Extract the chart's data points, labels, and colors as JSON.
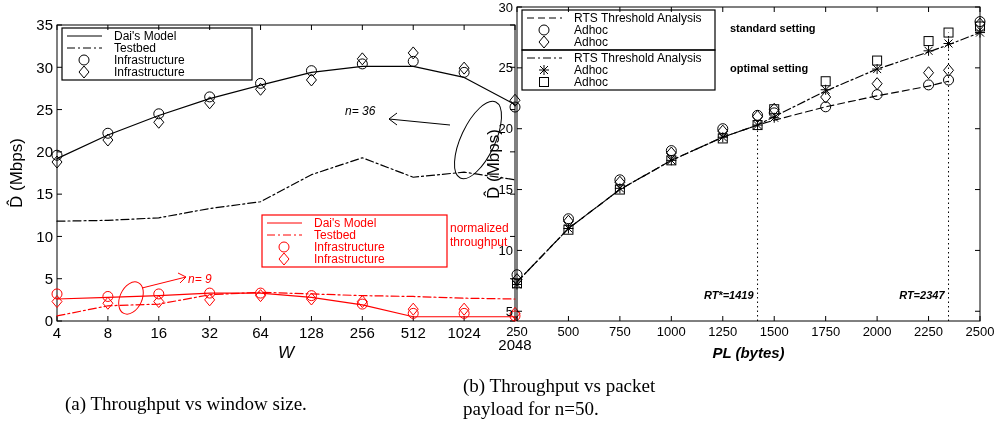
{
  "chart_data": [
    {
      "type": "line",
      "xlabel": "W",
      "ylabel": "D̂ (Mbps)",
      "categories": [
        "4",
        "8",
        "16",
        "32",
        "64",
        "128",
        "256",
        "512",
        "1024",
        "2048"
      ],
      "ylim": [
        0,
        35
      ],
      "yticks": [
        0,
        5,
        10,
        15,
        20,
        25,
        30,
        35
      ],
      "legend": "top left",
      "annotations": [
        "n= 36",
        "n= 9",
        "normalized throughput",
        "(a) Throughput vs window size."
      ],
      "series": [
        {
          "name": "Dai's Model",
          "line_style": "solid",
          "color": "#000000",
          "values": [
            19.2,
            22.0,
            24.3,
            26.3,
            27.9,
            29.4,
            30.1,
            30.1,
            28.8,
            25.6
          ]
        },
        {
          "name": "Testbed",
          "line_style": "dashdot",
          "color": "#000000",
          "values": [
            11.8,
            11.9,
            12.2,
            13.3,
            14.1,
            17.3,
            19.3,
            17.0,
            17.6,
            16.7
          ]
        },
        {
          "name": "Infrastructure",
          "type": "scatter",
          "marker": "circle",
          "color": "#000000",
          "values": [
            19.6,
            22.2,
            24.5,
            26.5,
            28.1,
            29.6,
            30.4,
            30.7,
            29.4,
            25.3
          ]
        },
        {
          "name": "Infrastructure",
          "type": "scatter",
          "marker": "diamond",
          "color": "#000000",
          "values": [
            18.8,
            21.4,
            23.5,
            25.8,
            27.4,
            28.5,
            31.0,
            31.7,
            29.9,
            26.1
          ]
        },
        {
          "name": "Dai's Model",
          "line_style": "solid",
          "color": "#ff0000",
          "values": [
            2.6,
            2.8,
            3.0,
            3.3,
            3.3,
            2.8,
            1.9,
            0.5,
            0.5,
            0.5
          ]
        },
        {
          "name": "Testbed",
          "line_style": "dashdot",
          "color": "#ff0000",
          "values": [
            0.6,
            1.8,
            2.0,
            3.1,
            3.4,
            3.2,
            3.0,
            2.9,
            2.7,
            2.6
          ]
        },
        {
          "name": "Infrastructure",
          "type": "scatter",
          "marker": "circle",
          "color": "#ff0000",
          "values": [
            3.2,
            2.9,
            3.2,
            3.3,
            3.3,
            3.0,
            2.0,
            0.9,
            0.9,
            0.6
          ]
        },
        {
          "name": "Infrastructure",
          "type": "scatter",
          "marker": "diamond",
          "color": "#ff0000",
          "values": [
            2.3,
            2.1,
            2.3,
            2.5,
            3.0,
            2.6,
            2.3,
            1.4,
            1.4,
            0.9
          ]
        }
      ]
    },
    {
      "type": "line",
      "xlabel": "PL (bytes)",
      "ylabel": "D̂ (Mbps)",
      "x": [
        250,
        500,
        750,
        1000,
        1250,
        1419,
        1500,
        1750,
        2000,
        2250,
        2347,
        2500
      ],
      "xlim": [
        250,
        2500
      ],
      "xticks": [
        250,
        500,
        750,
        1000,
        1250,
        1500,
        1750,
        2000,
        2250,
        2500
      ],
      "ylim": [
        4.2,
        30
      ],
      "yticks": [
        5,
        10,
        15,
        20,
        25,
        30
      ],
      "legend": "top left",
      "annotations": [
        "standard setting",
        "optimal setting",
        "(b) Throughput vs packet payload for n=50."
      ],
      "ref_lines": [
        {
          "axis": "x",
          "value": 1419,
          "label": "RT*=1419",
          "line_style": "dotted"
        },
        {
          "axis": "x",
          "value": 2347,
          "label": "RT=2347",
          "line_style": "dotted"
        }
      ],
      "series": [
        {
          "name": "RTS Threshold Analysis",
          "line_style": "dashed",
          "color": "#000000",
          "values": [
            7.4,
            11.8,
            15.0,
            17.4,
            19.3,
            20.3,
            20.7,
            21.8,
            22.7,
            23.5,
            23.9,
            null
          ]
        },
        {
          "name": "Adhoc",
          "type": "scatter",
          "marker": "circle",
          "color": "#000000",
          "values": [
            8.0,
            12.6,
            15.8,
            18.2,
            20.0,
            21.1,
            21.3,
            21.8,
            22.8,
            23.6,
            24.0,
            28.8
          ]
        },
        {
          "name": "Adhoc",
          "type": "scatter",
          "marker": "diamond",
          "color": "#000000",
          "values": [
            7.6,
            12.4,
            15.6,
            18.0,
            19.8,
            21.0,
            21.6,
            22.6,
            23.7,
            24.6,
            24.8,
            28.6
          ]
        },
        {
          "name": "RTS Threshold Analysis",
          "line_style": "dashdot",
          "color": "#000000",
          "values": [
            7.4,
            11.8,
            15.0,
            17.4,
            19.3,
            20.3,
            21.0,
            23.1,
            24.9,
            26.3,
            26.9,
            27.9
          ]
        },
        {
          "name": "Adhoc",
          "type": "scatter",
          "marker": "cross",
          "color": "#000000",
          "values": [
            7.2,
            11.8,
            15.1,
            17.4,
            19.3,
            20.3,
            20.9,
            23.2,
            24.9,
            26.4,
            27.0,
            27.9
          ]
        },
        {
          "name": "Adhoc",
          "type": "scatter",
          "marker": "square",
          "color": "#000000",
          "values": [
            7.3,
            11.7,
            15.0,
            17.4,
            19.2,
            20.3,
            21.6,
            23.9,
            25.6,
            27.2,
            27.9,
            28.4
          ]
        }
      ]
    }
  ]
}
